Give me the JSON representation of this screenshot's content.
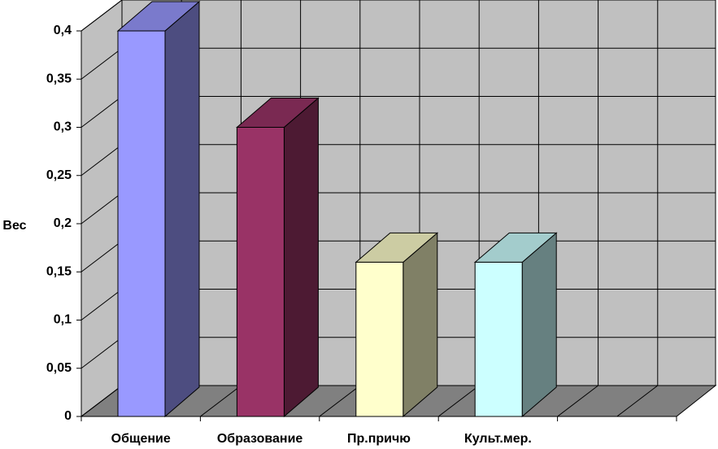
{
  "chart_data": {
    "type": "bar3d",
    "y_label": "Вес",
    "categories": [
      "Общение",
      "Образование",
      "Пр.причю",
      "Культ.мер.",
      null
    ],
    "values": [
      0.4,
      0.3,
      0.16,
      0.16,
      null
    ],
    "colors": [
      "#9999ff",
      "#993366",
      "#ffffcc",
      "#ccffff",
      null
    ],
    "ylim": [
      0,
      0.4
    ],
    "yticks": [
      0,
      {
        "value": 0.05,
        "label": "0,05"
      },
      {
        "value": 0.1,
        "label": "0,1"
      },
      {
        "value": 0.15,
        "label": "0,15"
      },
      {
        "value": 0.2,
        "label": "0,2"
      },
      {
        "value": 0.25,
        "label": "0,25"
      },
      {
        "value": 0.3,
        "label": "0,3"
      },
      {
        "value": 0.35,
        "label": "0,35"
      },
      {
        "value": 0.4,
        "label": "0,4"
      }
    ],
    "grid": true
  }
}
